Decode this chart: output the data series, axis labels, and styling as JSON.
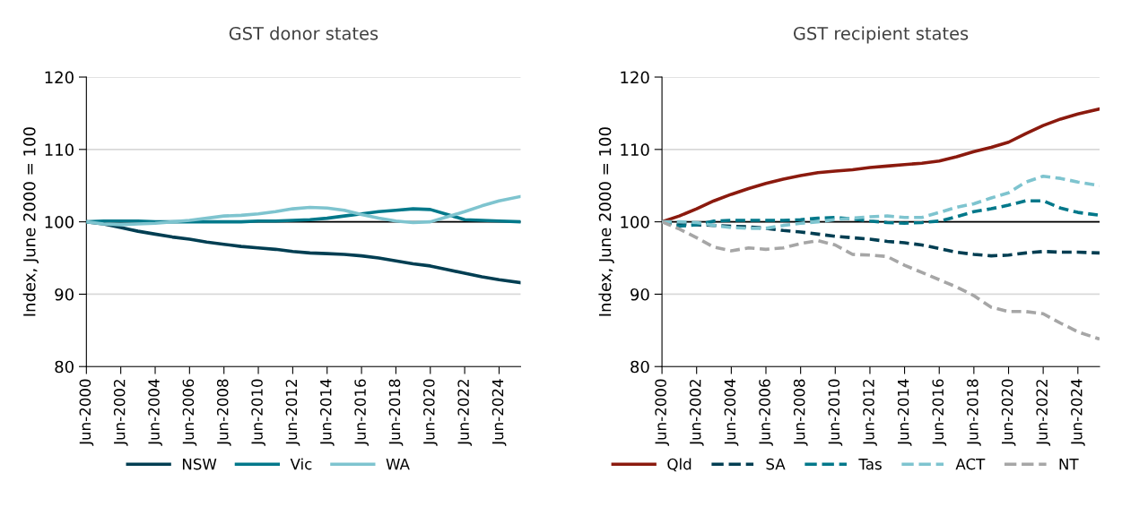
{
  "chart_data": [
    {
      "type": "line",
      "title": "GST donor states",
      "ylabel": "Index, June 2000 = 100",
      "x": [
        "2000-06",
        "2001-06",
        "2002-06",
        "2003-06",
        "2004-06",
        "2005-06",
        "2006-06",
        "2007-06",
        "2008-06",
        "2009-06",
        "2010-06",
        "2011-06",
        "2012-06",
        "2013-06",
        "2014-06",
        "2015-06",
        "2016-06",
        "2017-06",
        "2018-06",
        "2019-06",
        "2020-06",
        "2021-06",
        "2022-06",
        "2023-06",
        "2024-06",
        "2025-09"
      ],
      "series": [
        {
          "name": "NSW",
          "color": "#003e52",
          "line_style": "solid",
          "values": [
            100,
            99.7,
            99.2,
            98.7,
            98.3,
            97.9,
            97.6,
            97.2,
            96.9,
            96.6,
            96.4,
            96.2,
            95.9,
            95.7,
            95.6,
            95.5,
            95.3,
            95.0,
            94.6,
            94.2,
            93.9,
            93.4,
            92.9,
            92.4,
            92.0,
            91.6
          ]
        },
        {
          "name": "Vic",
          "color": "#00788a",
          "line_style": "solid",
          "values": [
            100,
            100.1,
            100.1,
            100.1,
            100.0,
            100.0,
            100.0,
            100.0,
            100.0,
            100.0,
            100.1,
            100.1,
            100.2,
            100.3,
            100.5,
            100.8,
            101.1,
            101.4,
            101.6,
            101.8,
            101.7,
            101.0,
            100.3,
            100.2,
            100.1,
            100.0
          ]
        },
        {
          "name": "WA",
          "color": "#7ec4cf",
          "line_style": "solid",
          "values": [
            100,
            99.7,
            99.6,
            99.7,
            99.8,
            100.0,
            100.2,
            100.5,
            100.8,
            100.9,
            101.1,
            101.4,
            101.8,
            102.0,
            101.9,
            101.6,
            101.0,
            100.5,
            100.1,
            99.9,
            100.0,
            100.7,
            101.4,
            102.2,
            102.9,
            103.5
          ]
        }
      ],
      "xlim": [
        "2000-06",
        "2025-09"
      ],
      "xticks": [
        {
          "value": "2000-06",
          "label": "Jun-2000"
        },
        {
          "value": "2002-06",
          "label": "Jun-2002"
        },
        {
          "value": "2004-06",
          "label": "Jun-2004"
        },
        {
          "value": "2006-06",
          "label": "Jun-2006"
        },
        {
          "value": "2008-06",
          "label": "Jun-2008"
        },
        {
          "value": "2010-06",
          "label": "Jun-2010"
        },
        {
          "value": "2012-06",
          "label": "Jun-2012"
        },
        {
          "value": "2014-06",
          "label": "Jun-2014"
        },
        {
          "value": "2016-06",
          "label": "Jun-2016"
        },
        {
          "value": "2018-06",
          "label": "Jun-2018"
        },
        {
          "value": "2020-06",
          "label": "Jun-2020"
        },
        {
          "value": "2022-06",
          "label": "Jun-2022"
        },
        {
          "value": "2024-06",
          "label": "Jun-2024"
        }
      ],
      "ylim": [
        80,
        120
      ],
      "yticks": [
        80,
        90,
        100,
        110,
        120
      ],
      "ref_lines": [
        {
          "axis": "y",
          "value": 100,
          "color": "#000000"
        }
      ],
      "grid": "y",
      "legend": "bottom"
    },
    {
      "type": "line",
      "title": "GST recipient states",
      "ylabel": "Index, June 2000 = 100",
      "x": [
        "2000-06",
        "2001-06",
        "2002-06",
        "2003-06",
        "2004-06",
        "2005-06",
        "2006-06",
        "2007-06",
        "2008-06",
        "2009-06",
        "2010-06",
        "2011-06",
        "2012-06",
        "2013-06",
        "2014-06",
        "2015-06",
        "2016-06",
        "2017-06",
        "2018-06",
        "2019-06",
        "2020-06",
        "2021-06",
        "2022-06",
        "2023-06",
        "2024-06",
        "2025-09"
      ],
      "series": [
        {
          "name": "Qld",
          "color": "#8b1a0e",
          "line_style": "solid",
          "values": [
            100,
            100.8,
            101.8,
            102.9,
            103.8,
            104.6,
            105.3,
            105.9,
            106.4,
            106.8,
            107.0,
            107.2,
            107.5,
            107.7,
            107.9,
            108.1,
            108.4,
            109.0,
            109.7,
            110.3,
            111.0,
            112.2,
            113.3,
            114.2,
            114.9,
            115.6
          ]
        },
        {
          "name": "SA",
          "color": "#003e52",
          "line_style": "dashed",
          "values": [
            100,
            99.7,
            99.6,
            99.5,
            99.4,
            99.3,
            99.1,
            98.8,
            98.6,
            98.3,
            98.0,
            97.8,
            97.6,
            97.3,
            97.1,
            96.8,
            96.3,
            95.8,
            95.5,
            95.3,
            95.4,
            95.7,
            95.9,
            95.8,
            95.8,
            95.7
          ]
        },
        {
          "name": "Tas",
          "color": "#00788a",
          "line_style": "dashed",
          "values": [
            100,
            99.4,
            99.6,
            100.1,
            100.2,
            100.2,
            100.2,
            100.2,
            100.3,
            100.5,
            100.6,
            100.4,
            100.1,
            99.9,
            99.8,
            99.9,
            100.1,
            100.7,
            101.4,
            101.8,
            102.3,
            102.9,
            102.9,
            101.9,
            101.3,
            100.9
          ]
        },
        {
          "name": "ACT",
          "color": "#7ec4cf",
          "line_style": "dashed",
          "values": [
            100,
            100.0,
            99.9,
            99.5,
            99.2,
            99.1,
            99.1,
            99.5,
            99.8,
            100.0,
            100.3,
            100.5,
            100.7,
            100.8,
            100.6,
            100.6,
            101.3,
            102.0,
            102.5,
            103.3,
            104.0,
            105.5,
            106.3,
            106.0,
            105.5,
            105.0
          ]
        },
        {
          "name": "NT",
          "color": "#a6a6a6",
          "line_style": "dashed",
          "values": [
            100,
            99.0,
            97.8,
            96.5,
            96.0,
            96.4,
            96.2,
            96.4,
            97.0,
            97.4,
            96.8,
            95.5,
            95.4,
            95.2,
            94.0,
            93.0,
            92.0,
            91.0,
            89.8,
            88.2,
            87.6,
            87.6,
            87.3,
            86.0,
            84.8,
            83.8
          ]
        }
      ],
      "xlim": [
        "2000-06",
        "2025-09"
      ],
      "xticks": [
        {
          "value": "2000-06",
          "label": "Jun-2000"
        },
        {
          "value": "2002-06",
          "label": "Jun-2002"
        },
        {
          "value": "2004-06",
          "label": "Jun-2004"
        },
        {
          "value": "2006-06",
          "label": "Jun-2006"
        },
        {
          "value": "2008-06",
          "label": "Jun-2008"
        },
        {
          "value": "2010-06",
          "label": "Jun-2010"
        },
        {
          "value": "2012-06",
          "label": "Jun-2012"
        },
        {
          "value": "2014-06",
          "label": "Jun-2014"
        },
        {
          "value": "2016-06",
          "label": "Jun-2016"
        },
        {
          "value": "2018-06",
          "label": "Jun-2018"
        },
        {
          "value": "2020-06",
          "label": "Jun-2020"
        },
        {
          "value": "2022-06",
          "label": "Jun-2022"
        },
        {
          "value": "2024-06",
          "label": "Jun-2024"
        }
      ],
      "ylim": [
        80,
        120
      ],
      "yticks": [
        80,
        90,
        100,
        110,
        120
      ],
      "ref_lines": [
        {
          "axis": "y",
          "value": 100,
          "color": "#000000"
        }
      ],
      "grid": "y",
      "legend": "bottom"
    }
  ]
}
